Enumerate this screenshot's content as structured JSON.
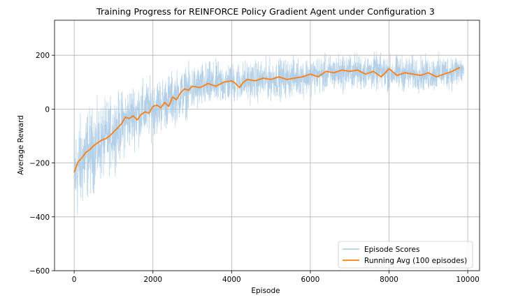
{
  "chart_data": {
    "type": "line",
    "title": "Training Progress for REINFORCE Policy Gradient Agent under Configuration 3",
    "xlabel": "Episode",
    "ylabel": "Average Reward",
    "xlim": [
      -500,
      10300
    ],
    "ylim": [
      -600,
      330
    ],
    "x_ticks": [
      0,
      2000,
      4000,
      6000,
      8000,
      10000
    ],
    "y_ticks": [
      -600,
      -400,
      -200,
      0,
      200
    ],
    "grid": true,
    "legend_position": "lower-right",
    "series": [
      {
        "name": "Episode Scores",
        "color": "#a6c8e4",
        "style": "noisy",
        "x_range": [
          0,
          9900
        ],
        "mean_points": [
          [
            0,
            -250
          ],
          [
            300,
            -170
          ],
          [
            800,
            -110
          ],
          [
            1500,
            -20
          ],
          [
            2000,
            5
          ],
          [
            2500,
            40
          ],
          [
            3000,
            75
          ],
          [
            3500,
            90
          ],
          [
            4000,
            100
          ],
          [
            5000,
            110
          ],
          [
            6000,
            125
          ],
          [
            7000,
            140
          ],
          [
            8000,
            135
          ],
          [
            9000,
            130
          ],
          [
            9900,
            145
          ]
        ],
        "spread_points": [
          [
            0,
            240
          ],
          [
            500,
            190
          ],
          [
            1000,
            160
          ],
          [
            2000,
            130
          ],
          [
            3000,
            110
          ],
          [
            4000,
            95
          ],
          [
            6000,
            85
          ],
          [
            8000,
            80
          ],
          [
            9900,
            80
          ]
        ]
      },
      {
        "name": "Running Avg (100 episodes)",
        "color": "#ff7f0e",
        "x": [
          0,
          100,
          200,
          300,
          400,
          500,
          600,
          700,
          800,
          900,
          1000,
          1100,
          1200,
          1300,
          1400,
          1500,
          1600,
          1700,
          1800,
          1900,
          2000,
          2100,
          2200,
          2300,
          2400,
          2500,
          2600,
          2700,
          2800,
          2900,
          3000,
          3200,
          3400,
          3600,
          3800,
          4000,
          4100,
          4200,
          4300,
          4400,
          4600,
          4800,
          5000,
          5200,
          5400,
          5600,
          5800,
          6000,
          6200,
          6400,
          6600,
          6800,
          7000,
          7200,
          7400,
          7600,
          7800,
          8000,
          8200,
          8400,
          8600,
          8800,
          9000,
          9200,
          9400,
          9600,
          9800
        ],
        "y": [
          -235,
          -195,
          -180,
          -160,
          -150,
          -135,
          -125,
          -115,
          -110,
          -100,
          -85,
          -70,
          -55,
          -30,
          -35,
          -25,
          -40,
          -20,
          -10,
          -15,
          10,
          15,
          5,
          25,
          10,
          45,
          35,
          60,
          75,
          70,
          85,
          80,
          95,
          85,
          100,
          105,
          95,
          80,
          100,
          110,
          105,
          115,
          110,
          120,
          110,
          115,
          120,
          130,
          120,
          140,
          135,
          145,
          140,
          145,
          130,
          140,
          120,
          150,
          125,
          135,
          130,
          125,
          135,
          120,
          130,
          140,
          155
        ]
      }
    ]
  }
}
